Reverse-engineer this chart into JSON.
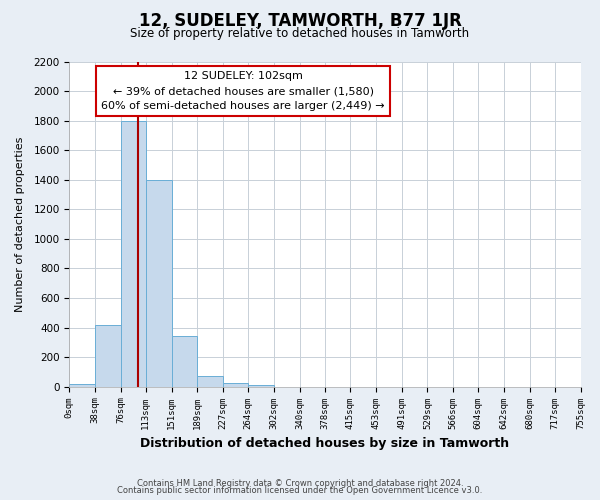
{
  "title": "12, SUDELEY, TAMWORTH, B77 1JR",
  "subtitle": "Size of property relative to detached houses in Tamworth",
  "xlabel": "Distribution of detached houses by size in Tamworth",
  "ylabel": "Number of detached properties",
  "bin_edges": [
    0,
    38,
    76,
    113,
    151,
    189,
    227,
    264,
    302,
    340,
    378,
    415,
    453,
    491,
    529,
    566,
    604,
    642,
    680,
    717,
    755
  ],
  "bin_labels": [
    "0sqm",
    "38sqm",
    "76sqm",
    "113sqm",
    "151sqm",
    "189sqm",
    "227sqm",
    "264sqm",
    "302sqm",
    "340sqm",
    "378sqm",
    "415sqm",
    "453sqm",
    "491sqm",
    "529sqm",
    "566sqm",
    "604sqm",
    "642sqm",
    "680sqm",
    "717sqm",
    "755sqm"
  ],
  "counts": [
    20,
    420,
    1800,
    1400,
    340,
    75,
    25,
    10,
    0,
    0,
    0,
    0,
    0,
    0,
    0,
    0,
    0,
    0,
    0,
    0
  ],
  "bar_color": "#c6d9ec",
  "bar_edge_color": "#6aaed6",
  "vline_x": 102,
  "vline_color": "#aa0000",
  "ylim": [
    0,
    2200
  ],
  "yticks": [
    0,
    200,
    400,
    600,
    800,
    1000,
    1200,
    1400,
    1600,
    1800,
    2000,
    2200
  ],
  "annotation_line1": "12 SUDELEY: 102sqm",
  "annotation_line2": "← 39% of detached houses are smaller (1,580)",
  "annotation_line3": "60% of semi-detached houses are larger (2,449) →",
  "annotation_box_color": "#ffffff",
  "annotation_box_edge": "#cc0000",
  "footer_line1": "Contains HM Land Registry data © Crown copyright and database right 2024.",
  "footer_line2": "Contains public sector information licensed under the Open Government Licence v3.0.",
  "bg_color": "#e8eef5",
  "plot_bg_color": "#ffffff",
  "grid_color": "#c8d0d8"
}
